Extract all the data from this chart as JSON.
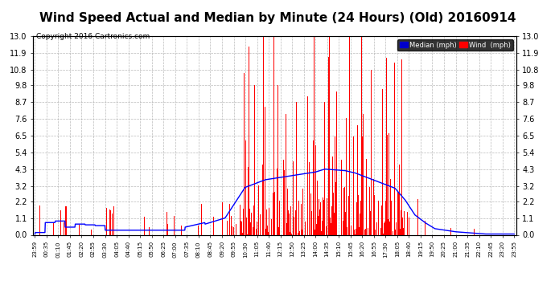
{
  "title": "Wind Speed Actual and Median by Minute (24 Hours) (Old) 20160914",
  "copyright": "Copyright 2016 Cartronics.com",
  "yticks": [
    0.0,
    1.1,
    2.2,
    3.2,
    4.3,
    5.4,
    6.5,
    7.6,
    8.7,
    9.8,
    10.8,
    11.9,
    13.0
  ],
  "ymax": 13.0,
  "ymin": 0.0,
  "bg_color": "#ffffff",
  "plot_bg_color": "#ffffff",
  "grid_color": "#aaaaaa",
  "wind_color": "#ff0000",
  "median_color": "#0000ff",
  "title_fontsize": 11,
  "copyright_fontsize": 6.5,
  "legend_median_label": "Median (mph)",
  "legend_wind_label": "Wind  (mph)",
  "legend_median_bg": "#0000cc",
  "legend_wind_bg": "#ff0000",
  "tick_labels": [
    "23:59",
    "00:35",
    "01:10",
    "01:45",
    "02:20",
    "02:55",
    "03:30",
    "04:05",
    "04:40",
    "05:15",
    "05:50",
    "06:25",
    "07:00",
    "07:35",
    "08:10",
    "08:45",
    "09:20",
    "09:55",
    "10:30",
    "11:05",
    "11:40",
    "12:15",
    "12:50",
    "13:25",
    "14:00",
    "14:35",
    "15:10",
    "15:45",
    "16:20",
    "16:55",
    "17:30",
    "18:05",
    "18:40",
    "19:15",
    "19:50",
    "20:25",
    "21:00",
    "21:35",
    "22:10",
    "22:45",
    "23:20",
    "23:55"
  ]
}
